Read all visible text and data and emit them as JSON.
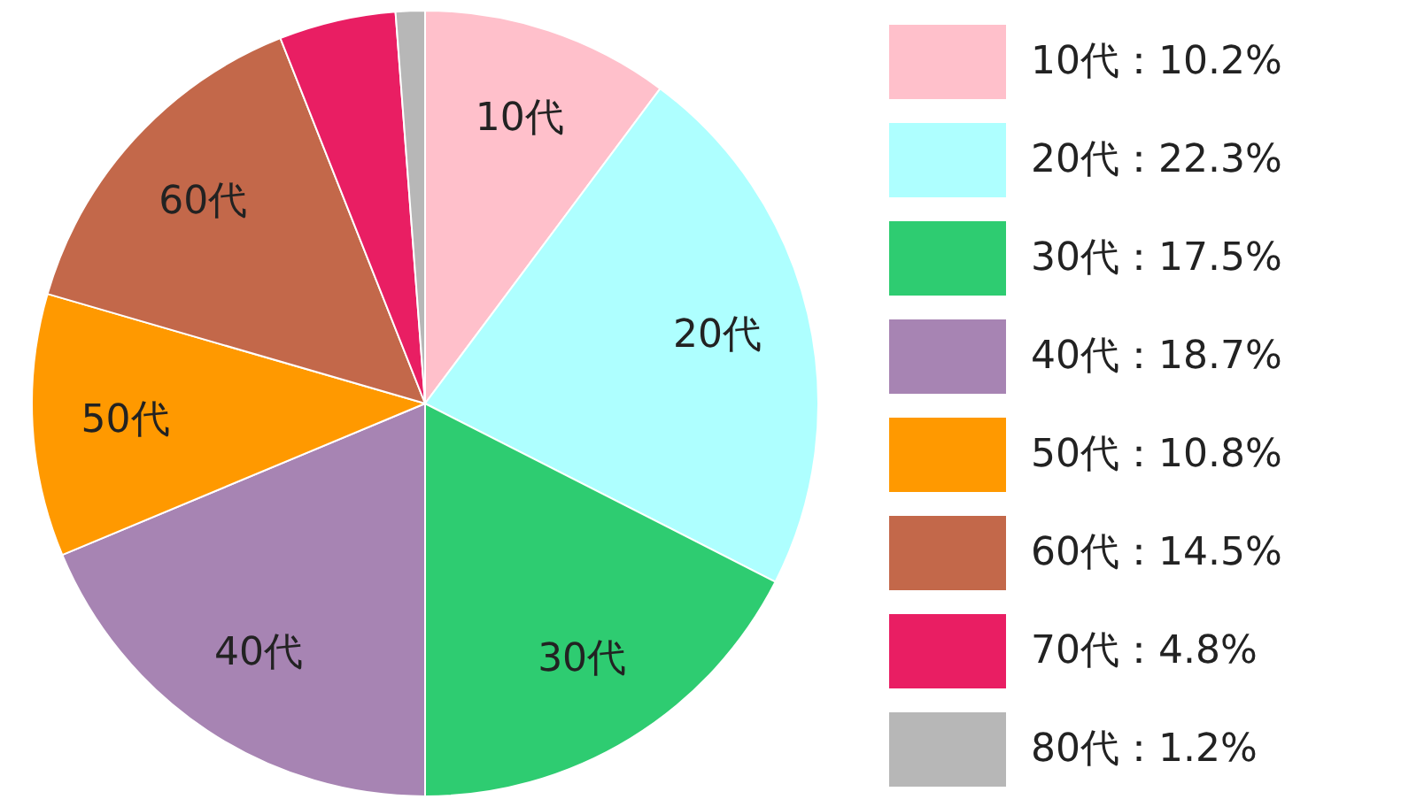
{
  "chart_data": {
    "type": "pie",
    "categories": [
      "10代",
      "20代",
      "30代",
      "40代",
      "50代",
      "60代",
      "70代",
      "80代"
    ],
    "values": [
      10.2,
      22.3,
      17.5,
      18.7,
      10.8,
      14.5,
      4.8,
      1.2
    ],
    "colors": [
      "#ffc0cb",
      "#aeffff",
      "#2ecc71",
      "#a784b3",
      "#ff9900",
      "#c3684a",
      "#e91e63",
      "#b7b7b7"
    ],
    "value_labels": [
      "：10.2%",
      "：22.3%",
      "：17.5%",
      "：18.7%",
      "：10.8%",
      "：14.5%",
      "：4.8%",
      "：1.2%"
    ],
    "legend": "right"
  }
}
